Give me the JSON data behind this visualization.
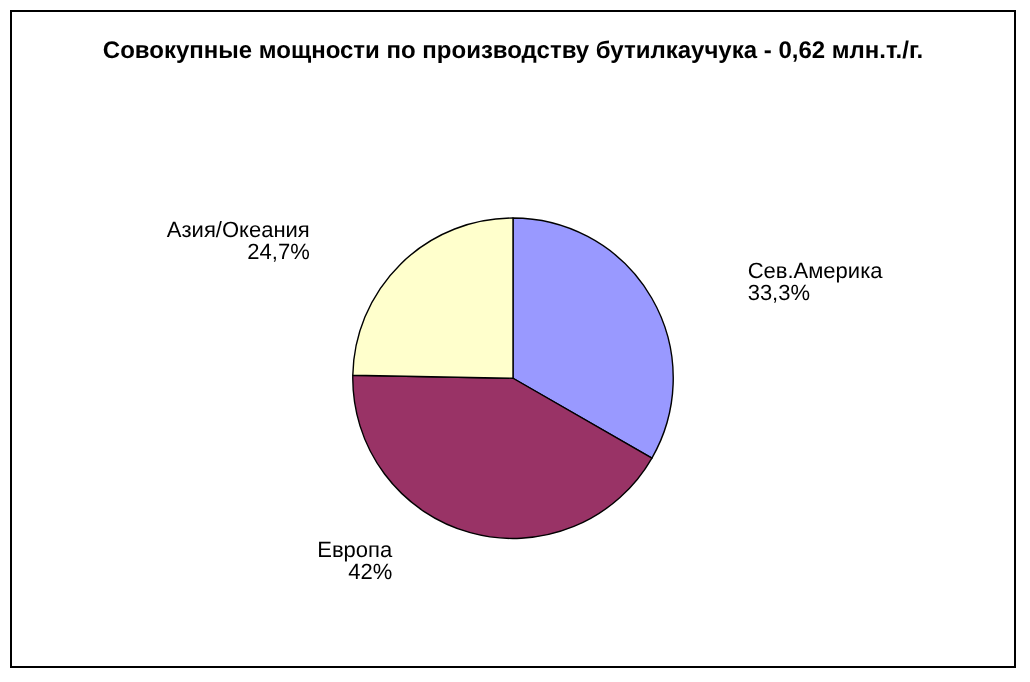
{
  "chart_data": {
    "type": "pie",
    "title": "Совокупные мощности по производству бутилкаучука - 0,62 млн.т./г.",
    "categories": [
      "Сев.Америка",
      "Европа",
      "Азия/Океания"
    ],
    "values": [
      33.3,
      42,
      24.7
    ],
    "value_labels": [
      "33,3%",
      "42%",
      "24,7%"
    ],
    "colors": [
      "#9999ff",
      "#993366",
      "#ffffcc"
    ],
    "legend": false
  }
}
